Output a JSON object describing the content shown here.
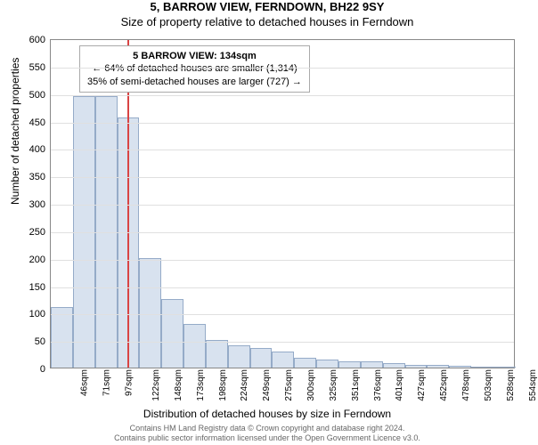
{
  "title": "5, BARROW VIEW, FERNDOWN, BH22 9SY",
  "subtitle": "Size of property relative to detached houses in Ferndown",
  "chart": {
    "type": "histogram",
    "ylabel": "Number of detached properties",
    "xlabel": "Distribution of detached houses by size in Ferndown",
    "ylim": [
      0,
      600
    ],
    "ytick_step": 50,
    "x_min": 46,
    "x_max": 580,
    "x_bin_label_step": 25.4,
    "x_unit": "sqm",
    "bar_fill": "#d8e2ef",
    "bar_stroke": "#95abc8",
    "grid_color": "#e0e0e0",
    "background_color": "#ffffff",
    "bar_values": [
      110,
      495,
      495,
      455,
      200,
      125,
      80,
      50,
      40,
      35,
      30,
      18,
      15,
      12,
      12,
      8,
      5,
      5,
      3,
      2,
      2
    ],
    "x_tick_labels": [
      "46sqm",
      "71sqm",
      "97sqm",
      "122sqm",
      "148sqm",
      "173sqm",
      "198sqm",
      "224sqm",
      "249sqm",
      "275sqm",
      "300sqm",
      "325sqm",
      "351sqm",
      "376sqm",
      "401sqm",
      "427sqm",
      "452sqm",
      "478sqm",
      "503sqm",
      "528sqm",
      "554sqm"
    ],
    "marker": {
      "value_sqm": 134,
      "color": "#d94444"
    },
    "tooltip": {
      "title": "5 BARROW VIEW: 134sqm",
      "line1": "← 64% of detached houses are smaller (1,314)",
      "line2": "35% of semi-detached houses are larger (727) →",
      "border_color": "#aaaaaa",
      "fontsize": 11
    }
  },
  "footer": {
    "line1": "Contains HM Land Registry data © Crown copyright and database right 2024.",
    "line2": "Contains public sector information licensed under the Open Government Licence v3.0."
  }
}
